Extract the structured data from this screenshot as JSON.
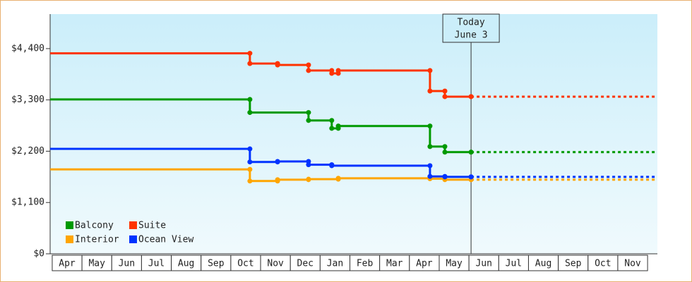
{
  "chart_data": {
    "type": "step-line",
    "ylim": [
      0,
      5140
    ],
    "yticks": [
      {
        "value": 0,
        "label": "$0"
      },
      {
        "value": 1100,
        "label": "$1,100"
      },
      {
        "value": 2200,
        "label": "$2,200"
      },
      {
        "value": 3300,
        "label": "$3,300"
      },
      {
        "value": 4400,
        "label": "$4,400"
      }
    ],
    "xlim": [
      -0.07,
      20.33
    ],
    "xticks": [
      {
        "value": 0.5,
        "label": "Apr"
      },
      {
        "value": 1.5,
        "label": "May"
      },
      {
        "value": 2.5,
        "label": "Jun"
      },
      {
        "value": 3.5,
        "label": "Jul"
      },
      {
        "value": 4.5,
        "label": "Aug"
      },
      {
        "value": 5.5,
        "label": "Sep"
      },
      {
        "value": 6.5,
        "label": "Oct"
      },
      {
        "value": 7.5,
        "label": "Nov"
      },
      {
        "value": 8.5,
        "label": "Dec"
      },
      {
        "value": 9.5,
        "label": "Jan"
      },
      {
        "value": 10.5,
        "label": "Feb"
      },
      {
        "value": 11.5,
        "label": "Mar"
      },
      {
        "value": 12.5,
        "label": "Apr"
      },
      {
        "value": 13.5,
        "label": "May"
      },
      {
        "value": 14.5,
        "label": "Jun"
      },
      {
        "value": 15.5,
        "label": "Jul"
      },
      {
        "value": 16.5,
        "label": "Aug"
      },
      {
        "value": 17.5,
        "label": "Sep"
      },
      {
        "value": 18.5,
        "label": "Oct"
      },
      {
        "value": 19.5,
        "label": "Nov"
      }
    ],
    "today": {
      "title": "Today",
      "date": "June 3",
      "x": 14.07
    },
    "legend": "lower-left",
    "series": [
      {
        "name": "Balcony",
        "color": "#009900",
        "x": [
          -0.07,
          6.64,
          8.61,
          9.39,
          9.61,
          12.69,
          13.19,
          14.07
        ],
        "values": [
          3310,
          3030,
          2860,
          2690,
          2740,
          2300,
          2180,
          2180
        ]
      },
      {
        "name": "Suite",
        "color": "#ff3300",
        "x": [
          -0.07,
          6.64,
          7.57,
          8.61,
          9.39,
          9.61,
          12.69,
          13.19,
          14.07
        ],
        "values": [
          4300,
          4080,
          4050,
          3930,
          3870,
          3930,
          3490,
          3370,
          3370
        ]
      },
      {
        "name": "Interior",
        "color": "#ffa500",
        "x": [
          -0.07,
          6.64,
          7.57,
          8.61,
          9.61,
          12.69,
          13.19,
          14.07
        ],
        "values": [
          1810,
          1560,
          1590,
          1600,
          1620,
          1610,
          1590,
          1590
        ]
      },
      {
        "name": "Ocean View",
        "color": "#0033ff",
        "x": [
          -0.07,
          6.64,
          7.57,
          8.61,
          9.39,
          12.69,
          13.19,
          14.07
        ],
        "values": [
          2250,
          1970,
          1980,
          1910,
          1890,
          1660,
          1650,
          1650
        ]
      }
    ]
  }
}
